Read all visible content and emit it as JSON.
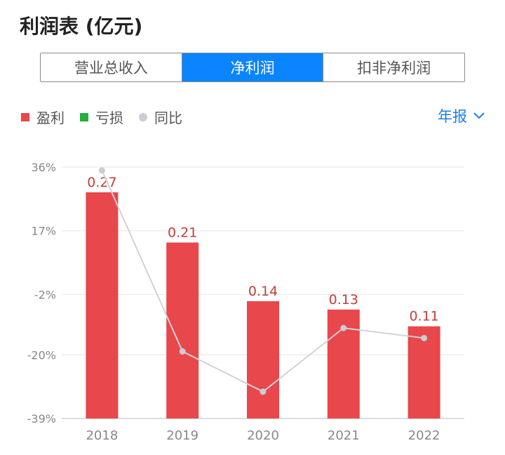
{
  "header": {
    "title": "利润表 (亿元)"
  },
  "tabs": [
    {
      "label": "营业总收入",
      "active": false
    },
    {
      "label": "净利润",
      "active": true
    },
    {
      "label": "扣非净利润",
      "active": false
    }
  ],
  "legend": [
    {
      "label": "盈利",
      "color": "#e8474b",
      "shape": "square"
    },
    {
      "label": "亏损",
      "color": "#25b03b",
      "shape": "square"
    },
    {
      "label": "同比",
      "color": "#c8cdd6",
      "shape": "dot"
    }
  ],
  "period_selector": {
    "label": "年报",
    "icon": "chevron-down-icon"
  },
  "colors": {
    "bar": "#e8474b",
    "line": "#cfd3da",
    "accent": "#0a84ff",
    "label": "#c83c3c"
  },
  "chart_data": {
    "type": "bar",
    "categories": [
      "2018",
      "2019",
      "2020",
      "2021",
      "2022"
    ],
    "series": [
      {
        "name": "盈利",
        "type": "bar",
        "values": [
          0.27,
          0.21,
          0.14,
          0.13,
          0.11
        ]
      },
      {
        "name": "同比",
        "type": "line",
        "values": [
          35,
          -19,
          -31,
          -12,
          -15
        ]
      }
    ],
    "data_labels": [
      "0.27",
      "0.21",
      "0.14",
      "0.13",
      "0.11"
    ],
    "y_axis": {
      "ticks": [
        "36%",
        "17%",
        "-2%",
        "-20%",
        "-39%"
      ],
      "values": [
        36,
        17,
        -2,
        -20,
        -39
      ],
      "ylim": [
        -39,
        36
      ]
    },
    "bar_ylim": [
      0,
      0.3
    ],
    "grid": true
  }
}
